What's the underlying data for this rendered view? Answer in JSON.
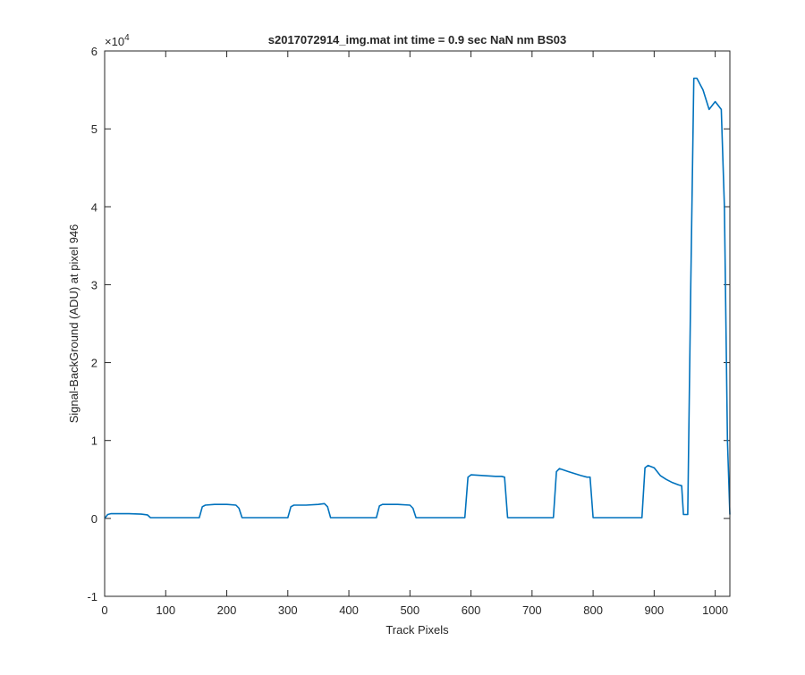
{
  "chart_data": {
    "type": "line",
    "title": "s2017072914_img.mat int time = 0.9 sec  NaN nm BS03",
    "xlabel": "Track Pixels",
    "ylabel": "Signal-BackGround (ADU) at pixel 946",
    "xlim": [
      0,
      1024
    ],
    "ylim": [
      -10000,
      60000
    ],
    "x_ticks": [
      0,
      100,
      200,
      300,
      400,
      500,
      600,
      700,
      800,
      900,
      1000
    ],
    "x_tick_labels": [
      "0",
      "100",
      "200",
      "300",
      "400",
      "500",
      "600",
      "700",
      "800",
      "900",
      "1000"
    ],
    "y_ticks": [
      -10000,
      0,
      10000,
      20000,
      30000,
      40000,
      50000,
      60000
    ],
    "y_tick_labels": [
      "-1",
      "0",
      "1",
      "2",
      "3",
      "4",
      "5",
      "6"
    ],
    "y_exponent_label": "×10",
    "y_exponent_power": "4",
    "grid": false,
    "line_color": "#0072BD",
    "series": [
      {
        "x": [
          0,
          5,
          10,
          20,
          40,
          60,
          70,
          75,
          100,
          130,
          155,
          160,
          165,
          180,
          200,
          215,
          220,
          225,
          250,
          280,
          300,
          305,
          310,
          330,
          350,
          360,
          365,
          370,
          400,
          430,
          445,
          450,
          455,
          480,
          500,
          505,
          510,
          540,
          570,
          590,
          595,
          600,
          620,
          640,
          650,
          655,
          660,
          690,
          720,
          735,
          740,
          745,
          760,
          780,
          790,
          795,
          800,
          830,
          860,
          880,
          885,
          890,
          900,
          910,
          920,
          930,
          940,
          945,
          948,
          955,
          960,
          965,
          970,
          980,
          990,
          1000,
          1010,
          1015,
          1020,
          1024
        ],
        "y": [
          0,
          500,
          600,
          600,
          600,
          550,
          450,
          100,
          100,
          100,
          100,
          1500,
          1700,
          1800,
          1800,
          1700,
          1300,
          100,
          100,
          100,
          100,
          1500,
          1700,
          1700,
          1800,
          1900,
          1500,
          100,
          100,
          100,
          100,
          1600,
          1800,
          1800,
          1700,
          1300,
          100,
          100,
          100,
          100,
          5300,
          5600,
          5500,
          5400,
          5400,
          5300,
          100,
          100,
          100,
          100,
          6000,
          6400,
          6000,
          5500,
          5300,
          5300,
          100,
          100,
          100,
          100,
          6500,
          6800,
          6500,
          5500,
          5000,
          4600,
          4300,
          4200,
          500,
          500,
          30000,
          56500,
          56500,
          55000,
          52500,
          53500,
          52500,
          40000,
          10000,
          500
        ]
      }
    ]
  }
}
